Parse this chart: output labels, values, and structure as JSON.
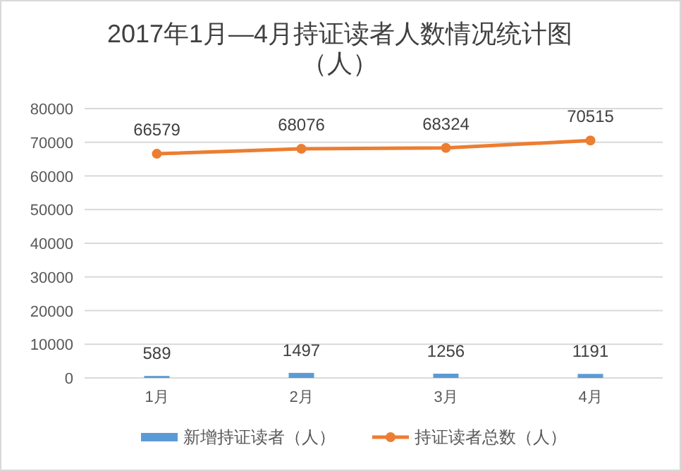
{
  "chart_data": {
    "type": "bar",
    "title": "2017年1月—4月持证读者人数情况统计图（人）",
    "categories": [
      "1月",
      "2月",
      "3月",
      "4月"
    ],
    "series": [
      {
        "name": "新增持证读者（人）",
        "color": "#5b9bd5",
        "values": [
          589,
          1497,
          1256,
          1191
        ]
      },
      {
        "name": "持证读者总数（人）",
        "type": "line",
        "color": "#ed7d31",
        "marker": "circle",
        "values": [
          66579,
          68076,
          68324,
          70515
        ]
      }
    ],
    "ylim": [
      0,
      80000
    ],
    "yticks": [
      0,
      10000,
      20000,
      30000,
      40000,
      50000,
      60000,
      70000,
      80000
    ],
    "grid": "y",
    "legend": "bottom",
    "data_labels": true
  }
}
